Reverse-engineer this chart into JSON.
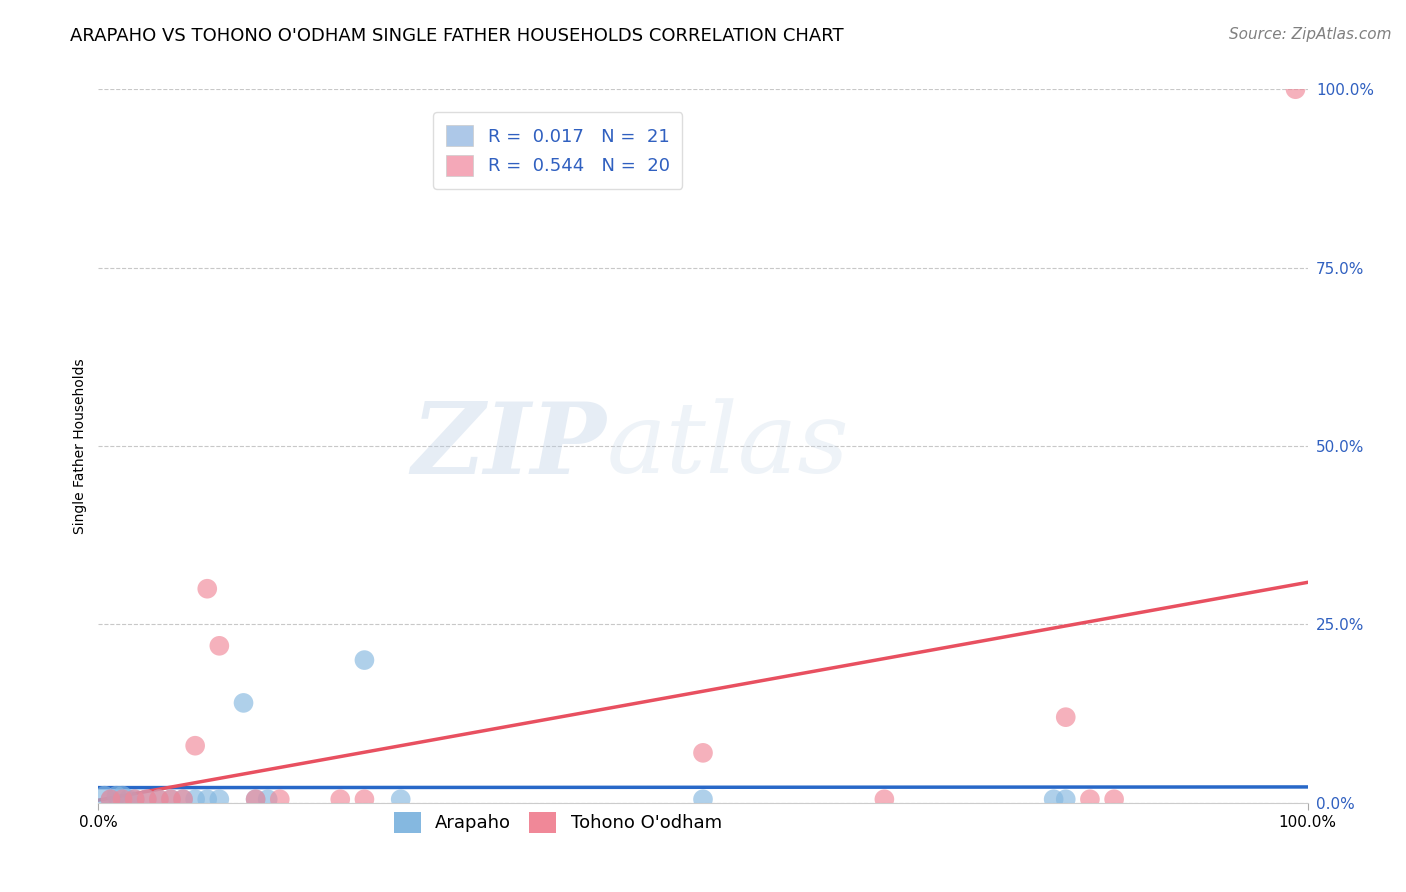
{
  "title": "ARAPAHO VS TOHONO O'ODHAM SINGLE FATHER HOUSEHOLDS CORRELATION CHART",
  "source": "Source: ZipAtlas.com",
  "ylabel": "Single Father Households",
  "watermark_zip": "ZIP",
  "watermark_atlas": "atlas",
  "xlim": [
    0.0,
    1.0
  ],
  "ylim": [
    0.0,
    1.0
  ],
  "ytick_positions": [
    0.0,
    0.25,
    0.5,
    0.75,
    1.0
  ],
  "ytick_labels": [
    "0.0%",
    "25.0%",
    "50.0%",
    "75.0%",
    "100.0%"
  ],
  "xtick_positions": [
    0.0,
    1.0
  ],
  "xtick_labels": [
    "0.0%",
    "100.0%"
  ],
  "legend1_label_r": "R =  0.017",
  "legend1_label_n": "N =  21",
  "legend2_label_r": "R =  0.544",
  "legend2_label_n": "N =  20",
  "legend1_color": "#adc8e8",
  "legend2_color": "#f4a8b8",
  "arapaho_color": "#85b8e0",
  "tohono_color": "#f08898",
  "arapaho_line_color": "#2868c8",
  "tohono_line_color": "#e85060",
  "arapaho_x": [
    0.005,
    0.01,
    0.015,
    0.02,
    0.025,
    0.03,
    0.04,
    0.05,
    0.06,
    0.07,
    0.08,
    0.09,
    0.1,
    0.12,
    0.13,
    0.14,
    0.22,
    0.25,
    0.5,
    0.79,
    0.8
  ],
  "arapaho_y": [
    0.01,
    0.005,
    0.01,
    0.01,
    0.005,
    0.005,
    0.005,
    0.005,
    0.005,
    0.005,
    0.005,
    0.005,
    0.005,
    0.14,
    0.005,
    0.005,
    0.2,
    0.005,
    0.005,
    0.005,
    0.005
  ],
  "tohono_x": [
    0.01,
    0.02,
    0.03,
    0.04,
    0.05,
    0.06,
    0.07,
    0.08,
    0.09,
    0.1,
    0.13,
    0.15,
    0.2,
    0.22,
    0.5,
    0.65,
    0.8,
    0.82,
    0.84,
    0.99
  ],
  "tohono_y": [
    0.005,
    0.005,
    0.005,
    0.005,
    0.005,
    0.005,
    0.005,
    0.08,
    0.3,
    0.22,
    0.005,
    0.005,
    0.005,
    0.005,
    0.07,
    0.005,
    0.12,
    0.005,
    0.005,
    1.0
  ],
  "marker_size": 200,
  "title_fontsize": 13,
  "axis_label_fontsize": 10,
  "tick_fontsize": 11,
  "legend_fontsize": 13,
  "source_fontsize": 11,
  "background_color": "#ffffff",
  "grid_color": "#c8c8c8",
  "right_tick_color": "#3060c0",
  "bottom_legend_labels": [
    "Arapaho",
    "Tohono O'odham"
  ]
}
